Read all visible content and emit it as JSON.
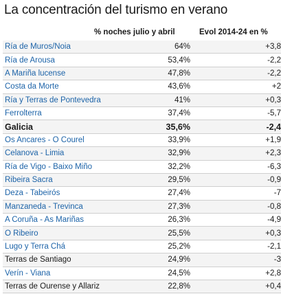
{
  "title": "La concentración del turismo en verano",
  "headers": {
    "col_pct": "% noches julio y abril",
    "col_evol": "Evol 2014-24 en %"
  },
  "rows": [
    {
      "name": "Ría de Muros/Noia",
      "pct": "64%",
      "evol": "+3,8"
    },
    {
      "name": "Ría de Arousa",
      "pct": "53,4%",
      "evol": "-2,2"
    },
    {
      "name": "A Mariña lucense",
      "pct": "47,8%",
      "evol": "-2,2"
    },
    {
      "name": "Costa da Morte",
      "pct": "43,6%",
      "evol": "+2"
    },
    {
      "name": "Ría y Terras de Pontevedra",
      "pct": "41%",
      "evol": "+0,3"
    },
    {
      "name": "Ferrolterra",
      "pct": "37,4%",
      "evol": "-5,7"
    },
    {
      "name": "Galicia",
      "pct": "35,6%",
      "evol": "-2,4"
    },
    {
      "name": "Os Ancares - O Courel",
      "pct": "33,9%",
      "evol": "+1,9"
    },
    {
      "name": "Celanova - Limia",
      "pct": "32,9%",
      "evol": "+2,3"
    },
    {
      "name": "Ría de Vigo - Baixo Miño",
      "pct": "32,2%",
      "evol": "-6,3"
    },
    {
      "name": "Ribeira Sacra",
      "pct": "29,5%",
      "evol": "-0,9"
    },
    {
      "name": "Deza - Tabeirós",
      "pct": "27,4%",
      "evol": "-7"
    },
    {
      "name": "Manzaneda - Trevinca",
      "pct": "27,3%",
      "evol": "-0,8"
    },
    {
      "name": "A Coruña - As Mariñas",
      "pct": "26,3%",
      "evol": "-4,9"
    },
    {
      "name": "O Ribeiro",
      "pct": "25,5%",
      "evol": "+0,3"
    },
    {
      "name": "Lugo y Terra Chá",
      "pct": "25,2%",
      "evol": "-2,1"
    },
    {
      "name": "Terras de Santiago",
      "pct": "24,9%",
      "evol": "-3"
    },
    {
      "name": "Verín - Viana",
      "pct": "24,5%",
      "evol": "+2,8"
    },
    {
      "name": "Terras de Ourense y Allariz",
      "pct": "22,8%",
      "evol": "+0,4"
    }
  ],
  "colors": {
    "name_blue": "#1c63a8",
    "text": "#1a1a1a",
    "stripe": "#f4f4f4"
  }
}
